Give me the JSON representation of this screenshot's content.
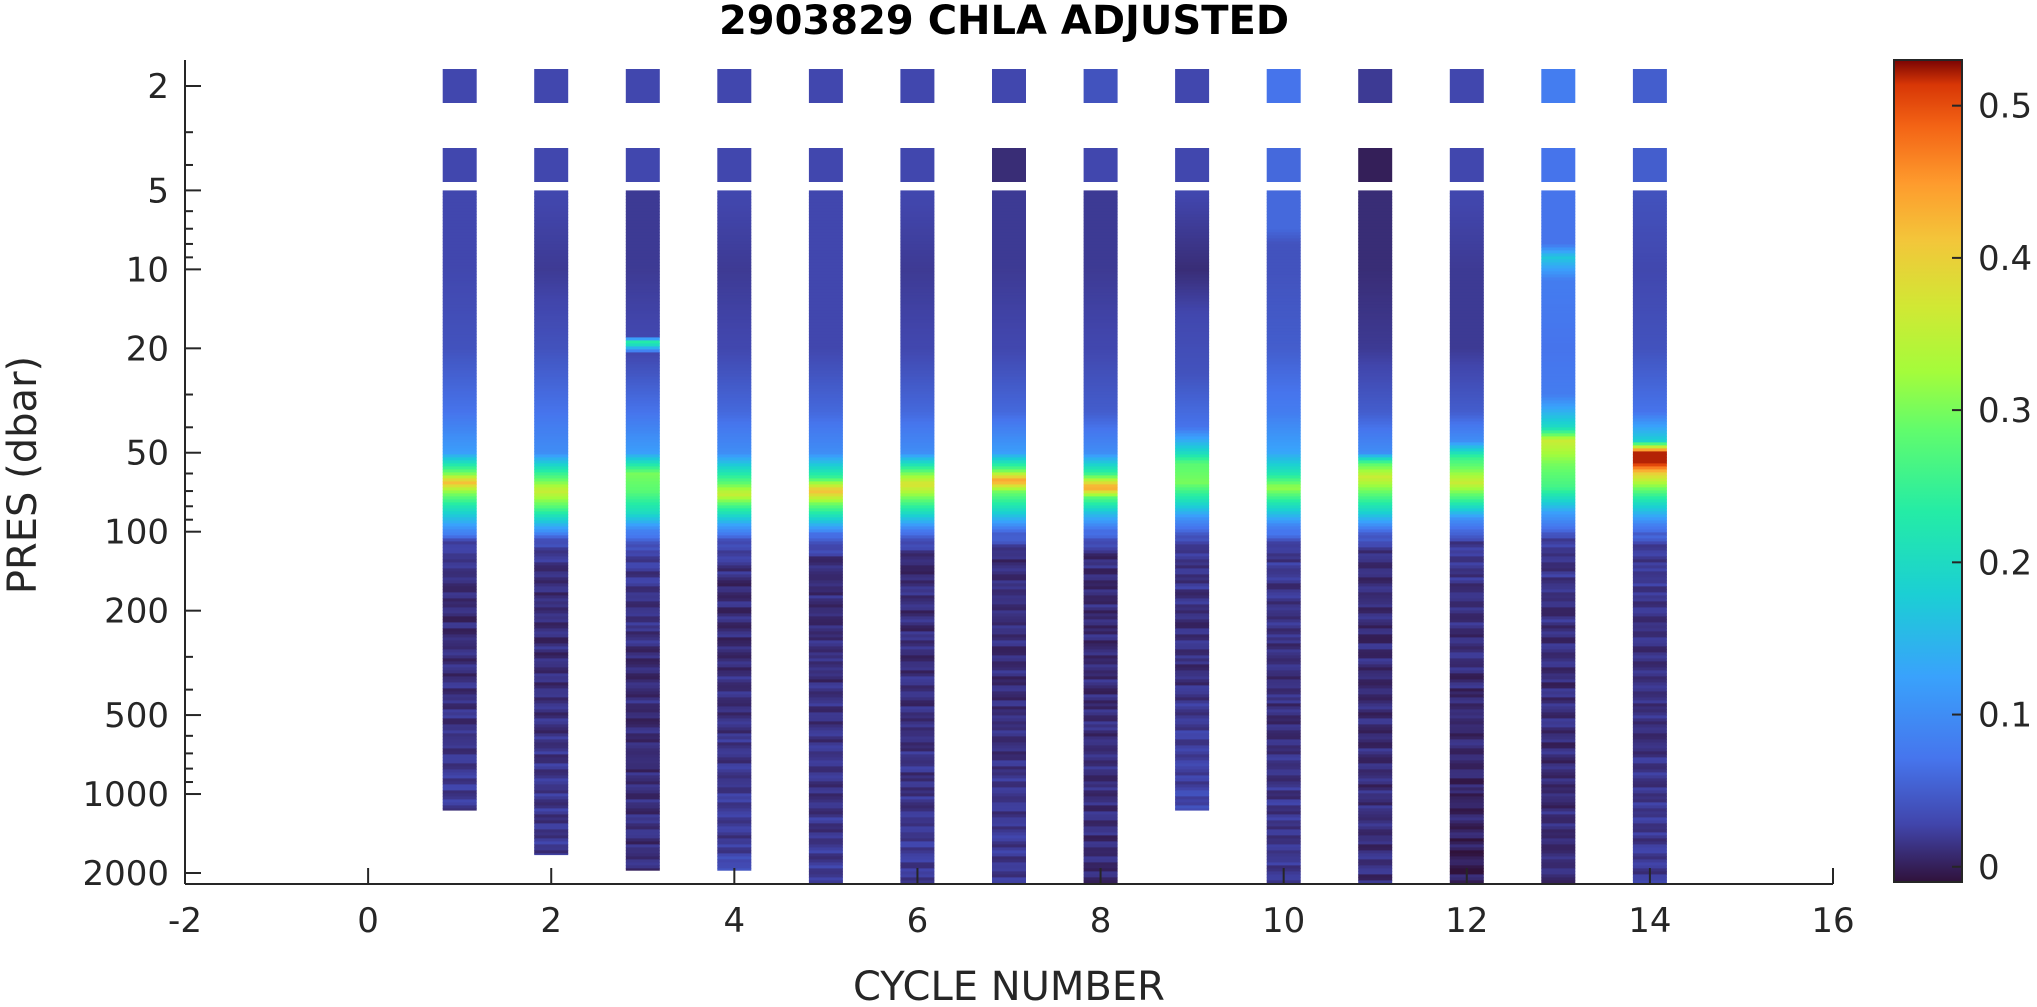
{
  "chart_data": {
    "type": "heatmap",
    "title": "2903829  CHLA ADJUSTED",
    "xlabel": "CYCLE NUMBER",
    "ylabel": "PRES (dbar)",
    "xlim": [
      -2,
      16
    ],
    "x_ticks": [
      -2,
      0,
      2,
      4,
      6,
      8,
      10,
      12,
      14,
      16
    ],
    "y_scale": "log",
    "ylim": [
      1.5,
      2200
    ],
    "y_reversed": true,
    "y_ticks": [
      2,
      5,
      10,
      20,
      50,
      100,
      200,
      500,
      1000,
      2000
    ],
    "colorbar": {
      "colormap": "turbo",
      "range": [
        -0.01,
        0.53
      ],
      "ticks": [
        0,
        0.1,
        0.2,
        0.3,
        0.4,
        0.5
      ],
      "tick_labels": [
        "0",
        "0.1",
        "0.2",
        "0.3",
        "0.4",
        "0.5"
      ]
    },
    "grid": false,
    "profiles": [
      {
        "cycle": 1,
        "max_pres": 1150,
        "surface": [
          [
            2,
            0.03
          ],
          [
            4,
            0.03
          ]
        ],
        "values": [
          [
            5,
            0.03
          ],
          [
            10,
            0.03
          ],
          [
            20,
            0.04
          ],
          [
            35,
            0.07
          ],
          [
            50,
            0.12
          ],
          [
            60,
            0.3
          ],
          [
            65,
            0.42
          ],
          [
            70,
            0.32
          ],
          [
            80,
            0.22
          ],
          [
            95,
            0.12
          ],
          [
            110,
            0.03
          ],
          [
            150,
            0.01
          ],
          [
            300,
            0.01
          ],
          [
            1150,
            0.02
          ]
        ]
      },
      {
        "cycle": 2,
        "max_pres": 1700,
        "surface": [
          [
            2,
            0.03
          ],
          [
            4,
            0.03
          ]
        ],
        "values": [
          [
            5,
            0.03
          ],
          [
            10,
            0.02
          ],
          [
            20,
            0.04
          ],
          [
            35,
            0.07
          ],
          [
            50,
            0.1
          ],
          [
            60,
            0.25
          ],
          [
            70,
            0.36
          ],
          [
            80,
            0.28
          ],
          [
            95,
            0.14
          ],
          [
            110,
            0.03
          ],
          [
            150,
            0.01
          ],
          [
            300,
            0.01
          ],
          [
            1700,
            0.02
          ]
        ]
      },
      {
        "cycle": 3,
        "max_pres": 1950,
        "surface": [
          [
            2,
            0.03
          ],
          [
            4,
            0.03
          ]
        ],
        "values": [
          [
            5,
            0.02
          ],
          [
            10,
            0.02
          ],
          [
            18,
            0.03
          ],
          [
            19,
            0.25
          ],
          [
            21,
            0.03
          ],
          [
            35,
            0.07
          ],
          [
            50,
            0.12
          ],
          [
            60,
            0.3
          ],
          [
            70,
            0.28
          ],
          [
            85,
            0.2
          ],
          [
            100,
            0.08
          ],
          [
            120,
            0.02
          ],
          [
            300,
            0.01
          ],
          [
            1950,
            0.01
          ]
        ]
      },
      {
        "cycle": 4,
        "max_pres": 1950,
        "surface": [
          [
            2,
            0.03
          ],
          [
            4,
            0.03
          ]
        ],
        "values": [
          [
            5,
            0.03
          ],
          [
            10,
            0.02
          ],
          [
            20,
            0.03
          ],
          [
            35,
            0.06
          ],
          [
            50,
            0.1
          ],
          [
            65,
            0.28
          ],
          [
            72,
            0.36
          ],
          [
            80,
            0.26
          ],
          [
            95,
            0.12
          ],
          [
            110,
            0.03
          ],
          [
            150,
            0.01
          ],
          [
            300,
            0.01
          ],
          [
            1600,
            0.02
          ],
          [
            1950,
            0.04
          ]
        ]
      },
      {
        "cycle": 5,
        "max_pres": 2200,
        "surface": [
          [
            2,
            0.03
          ],
          [
            4,
            0.03
          ]
        ],
        "values": [
          [
            5,
            0.03
          ],
          [
            10,
            0.03
          ],
          [
            20,
            0.03
          ],
          [
            35,
            0.06
          ],
          [
            50,
            0.1
          ],
          [
            62,
            0.25
          ],
          [
            70,
            0.42
          ],
          [
            78,
            0.3
          ],
          [
            90,
            0.18
          ],
          [
            105,
            0.05
          ],
          [
            130,
            0.01
          ],
          [
            300,
            0.01
          ],
          [
            2200,
            0.02
          ]
        ]
      },
      {
        "cycle": 6,
        "max_pres": 2200,
        "surface": [
          [
            2,
            0.03
          ],
          [
            4,
            0.03
          ]
        ],
        "values": [
          [
            5,
            0.03
          ],
          [
            10,
            0.02
          ],
          [
            20,
            0.03
          ],
          [
            35,
            0.06
          ],
          [
            50,
            0.1
          ],
          [
            60,
            0.3
          ],
          [
            66,
            0.38
          ],
          [
            72,
            0.32
          ],
          [
            85,
            0.2
          ],
          [
            100,
            0.07
          ],
          [
            120,
            0.01
          ],
          [
            300,
            0.01
          ],
          [
            2200,
            0.02
          ]
        ]
      },
      {
        "cycle": 7,
        "max_pres": 2200,
        "surface": [
          [
            2,
            0.03
          ],
          [
            4,
            0.01
          ]
        ],
        "values": [
          [
            5,
            0.02
          ],
          [
            10,
            0.02
          ],
          [
            20,
            0.03
          ],
          [
            35,
            0.06
          ],
          [
            50,
            0.12
          ],
          [
            58,
            0.28
          ],
          [
            64,
            0.45
          ],
          [
            70,
            0.3
          ],
          [
            85,
            0.18
          ],
          [
            100,
            0.06
          ],
          [
            120,
            0.01
          ],
          [
            300,
            0.01
          ],
          [
            2200,
            0.02
          ]
        ]
      },
      {
        "cycle": 8,
        "max_pres": 2200,
        "surface": [
          [
            2,
            0.04
          ],
          [
            4,
            0.03
          ]
        ],
        "values": [
          [
            5,
            0.02
          ],
          [
            10,
            0.02
          ],
          [
            20,
            0.03
          ],
          [
            35,
            0.05
          ],
          [
            50,
            0.1
          ],
          [
            60,
            0.25
          ],
          [
            68,
            0.45
          ],
          [
            74,
            0.28
          ],
          [
            85,
            0.16
          ],
          [
            100,
            0.06
          ],
          [
            120,
            0.01
          ],
          [
            300,
            0.01
          ],
          [
            2200,
            0.01
          ]
        ]
      },
      {
        "cycle": 9,
        "max_pres": 1150,
        "surface": [
          [
            2,
            0.03
          ],
          [
            4,
            0.03
          ]
        ],
        "values": [
          [
            5,
            0.03
          ],
          [
            10,
            0.01
          ],
          [
            15,
            0.03
          ],
          [
            25,
            0.04
          ],
          [
            40,
            0.07
          ],
          [
            50,
            0.2
          ],
          [
            55,
            0.28
          ],
          [
            65,
            0.3
          ],
          [
            75,
            0.22
          ],
          [
            90,
            0.1
          ],
          [
            110,
            0.02
          ],
          [
            300,
            0.01
          ],
          [
            1150,
            0.03
          ]
        ]
      },
      {
        "cycle": 10,
        "max_pres": 2200,
        "surface": [
          [
            2,
            0.07
          ],
          [
            4,
            0.06
          ]
        ],
        "values": [
          [
            5,
            0.06
          ],
          [
            7,
            0.06
          ],
          [
            8,
            0.04
          ],
          [
            10,
            0.04
          ],
          [
            20,
            0.05
          ],
          [
            35,
            0.08
          ],
          [
            50,
            0.13
          ],
          [
            60,
            0.22
          ],
          [
            68,
            0.32
          ],
          [
            78,
            0.22
          ],
          [
            95,
            0.09
          ],
          [
            115,
            0.02
          ],
          [
            300,
            0.01
          ],
          [
            2200,
            0.02
          ]
        ]
      },
      {
        "cycle": 11,
        "max_pres": 2200,
        "surface": [
          [
            2,
            0.02
          ],
          [
            4,
            0.0
          ]
        ],
        "values": [
          [
            5,
            0.01
          ],
          [
            10,
            0.01
          ],
          [
            20,
            0.02
          ],
          [
            35,
            0.05
          ],
          [
            50,
            0.1
          ],
          [
            55,
            0.28
          ],
          [
            62,
            0.36
          ],
          [
            72,
            0.28
          ],
          [
            85,
            0.18
          ],
          [
            100,
            0.06
          ],
          [
            120,
            0.01
          ],
          [
            300,
            0.01
          ],
          [
            2200,
            0.01
          ]
        ]
      },
      {
        "cycle": 12,
        "max_pres": 2200,
        "surface": [
          [
            2,
            0.03
          ],
          [
            4,
            0.03
          ]
        ],
        "values": [
          [
            5,
            0.03
          ],
          [
            10,
            0.02
          ],
          [
            20,
            0.02
          ],
          [
            35,
            0.05
          ],
          [
            45,
            0.1
          ],
          [
            52,
            0.25
          ],
          [
            58,
            0.3
          ],
          [
            65,
            0.36
          ],
          [
            75,
            0.26
          ],
          [
            90,
            0.1
          ],
          [
            110,
            0.02
          ],
          [
            300,
            0.01
          ],
          [
            2200,
            0.0
          ]
        ]
      },
      {
        "cycle": 13,
        "max_pres": 2200,
        "surface": [
          [
            2,
            0.08
          ],
          [
            4,
            0.07
          ]
        ],
        "values": [
          [
            5,
            0.07
          ],
          [
            8,
            0.07
          ],
          [
            9,
            0.17
          ],
          [
            11,
            0.08
          ],
          [
            20,
            0.07
          ],
          [
            30,
            0.08
          ],
          [
            40,
            0.2
          ],
          [
            45,
            0.36
          ],
          [
            55,
            0.3
          ],
          [
            68,
            0.26
          ],
          [
            85,
            0.12
          ],
          [
            110,
            0.02
          ],
          [
            300,
            0.01
          ],
          [
            2200,
            0.01
          ]
        ]
      },
      {
        "cycle": 14,
        "max_pres": 2200,
        "surface": [
          [
            2,
            0.05
          ],
          [
            4,
            0.05
          ]
        ],
        "values": [
          [
            5,
            0.04
          ],
          [
            10,
            0.03
          ],
          [
            20,
            0.04
          ],
          [
            35,
            0.07
          ],
          [
            45,
            0.18
          ],
          [
            50,
            0.52
          ],
          [
            55,
            0.52
          ],
          [
            60,
            0.4
          ],
          [
            68,
            0.3
          ],
          [
            78,
            0.2
          ],
          [
            95,
            0.08
          ],
          [
            115,
            0.02
          ],
          [
            300,
            0.01
          ],
          [
            2200,
            0.02
          ]
        ]
      }
    ]
  }
}
